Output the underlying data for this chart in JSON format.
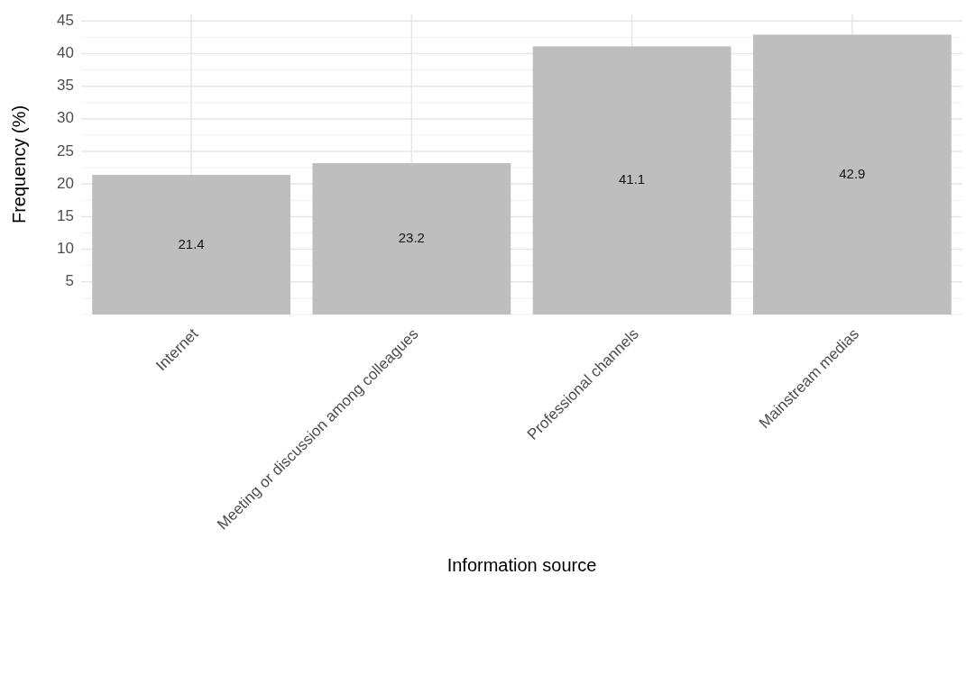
{
  "chart_data": {
    "type": "bar",
    "xlabel": "Information source",
    "ylabel": "Frequency (%)",
    "categories": [
      "Internet",
      "Meeting or discussion among colleagues",
      "Professional channels",
      "Mainstream medias"
    ],
    "values": [
      21.4,
      23.2,
      41.1,
      42.9
    ],
    "color": "#bebebe",
    "ylim": [
      0,
      46
    ],
    "yticks": [
      5,
      10,
      15,
      20,
      25,
      30,
      35,
      40,
      45
    ],
    "grid": true,
    "data_labels": true
  }
}
